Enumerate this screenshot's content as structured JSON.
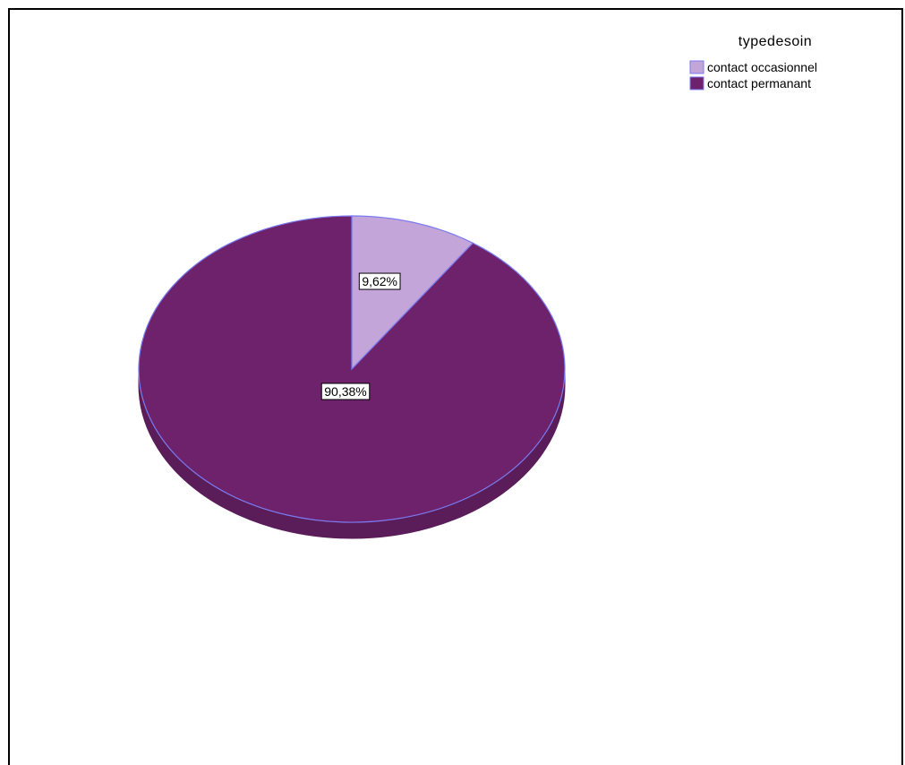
{
  "chart_data": {
    "type": "pie",
    "style": "3d",
    "legend_title": "typedesoin",
    "legend_position": "top-right",
    "slices": [
      {
        "label": "contact occasionnel",
        "value": 9.62,
        "display": "9,62%",
        "color": "#c4a5d9"
      },
      {
        "label": "contact permanant",
        "value": 90.38,
        "display": "90,38%",
        "color": "#6d226b"
      }
    ],
    "edge_color": "#7b7bf0",
    "side_color": "#5a1d59"
  }
}
